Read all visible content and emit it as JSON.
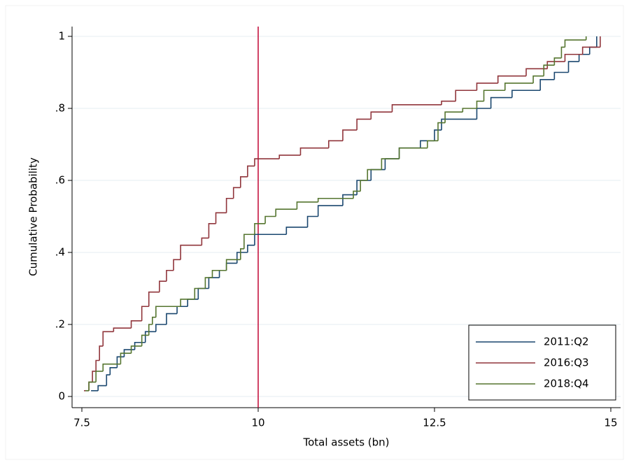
{
  "chart_data": {
    "type": "step",
    "x_label": "Total assets (bn)",
    "y_label": "Cumulative Probability",
    "xlim": [
      7.5,
      15
    ],
    "ylim": [
      0,
      1
    ],
    "xticks": [
      7.5,
      10,
      12.5,
      15
    ],
    "yticks": [
      0,
      {
        "value": 0.2,
        "label": ".2"
      },
      {
        "value": 0.4,
        "label": ".4"
      },
      {
        "value": 0.6,
        "label": ".6"
      },
      {
        "value": 0.8,
        "label": ".8"
      },
      1
    ],
    "grid": true,
    "reference_line": {
      "x": 10,
      "color": "#c10534"
    },
    "legend_position": "bottom-right",
    "series": [
      {
        "name": "2011:Q2",
        "color": "#1a476f",
        "x": [
          7.63,
          7.73,
          7.85,
          7.9,
          8.0,
          8.1,
          8.25,
          8.4,
          8.55,
          8.7,
          8.85,
          9.0,
          9.15,
          9.3,
          9.45,
          9.55,
          9.7,
          9.85,
          9.95,
          10.4,
          10.7,
          10.85,
          11.2,
          11.4,
          11.6,
          11.8,
          12.0,
          12.3,
          12.5,
          12.6,
          13.1,
          13.3,
          13.6,
          14.0,
          14.2,
          14.4,
          14.55,
          14.7,
          14.8
        ],
        "values": [
          0.016,
          0.03,
          0.06,
          0.08,
          0.11,
          0.13,
          0.15,
          0.18,
          0.2,
          0.23,
          0.25,
          0.27,
          0.3,
          0.33,
          0.35,
          0.37,
          0.4,
          0.42,
          0.45,
          0.47,
          0.5,
          0.53,
          0.56,
          0.6,
          0.63,
          0.66,
          0.69,
          0.71,
          0.74,
          0.77,
          0.8,
          0.83,
          0.85,
          0.88,
          0.9,
          0.93,
          0.95,
          0.97,
          1.0
        ]
      },
      {
        "name": "2016:Q3",
        "color": "#90353b",
        "x": [
          7.53,
          7.6,
          7.65,
          7.7,
          7.75,
          7.8,
          7.95,
          8.2,
          8.35,
          8.45,
          8.6,
          8.7,
          8.8,
          8.9,
          9.2,
          9.3,
          9.4,
          9.55,
          9.65,
          9.75,
          9.85,
          9.95,
          10.3,
          10.6,
          11.0,
          11.2,
          11.4,
          11.6,
          11.9,
          12.6,
          12.8,
          13.1,
          13.4,
          13.8,
          14.1,
          14.35,
          14.6,
          14.85
        ],
        "values": [
          0.016,
          0.04,
          0.07,
          0.1,
          0.14,
          0.18,
          0.19,
          0.21,
          0.25,
          0.29,
          0.32,
          0.35,
          0.38,
          0.42,
          0.44,
          0.48,
          0.51,
          0.55,
          0.58,
          0.61,
          0.64,
          0.66,
          0.67,
          0.69,
          0.71,
          0.74,
          0.77,
          0.79,
          0.81,
          0.82,
          0.85,
          0.87,
          0.89,
          0.91,
          0.93,
          0.95,
          0.97,
          1.0
        ]
      },
      {
        "name": "2018:Q4",
        "color": "#55752f",
        "x": [
          7.55,
          7.6,
          7.7,
          7.8,
          8.05,
          8.2,
          8.35,
          8.45,
          8.5,
          8.55,
          8.9,
          9.1,
          9.25,
          9.35,
          9.55,
          9.75,
          9.8,
          9.95,
          10.1,
          10.25,
          10.55,
          10.85,
          11.35,
          11.45,
          11.55,
          11.75,
          12.0,
          12.4,
          12.55,
          12.65,
          12.9,
          13.1,
          13.2,
          13.5,
          13.9,
          14.05,
          14.2,
          14.3,
          14.35,
          14.65
        ],
        "values": [
          0.016,
          0.04,
          0.07,
          0.09,
          0.12,
          0.14,
          0.17,
          0.2,
          0.22,
          0.25,
          0.27,
          0.3,
          0.33,
          0.35,
          0.38,
          0.41,
          0.45,
          0.48,
          0.5,
          0.52,
          0.54,
          0.55,
          0.57,
          0.6,
          0.63,
          0.66,
          0.69,
          0.71,
          0.76,
          0.79,
          0.8,
          0.82,
          0.85,
          0.87,
          0.89,
          0.92,
          0.94,
          0.97,
          0.99,
          1.0
        ]
      }
    ]
  }
}
